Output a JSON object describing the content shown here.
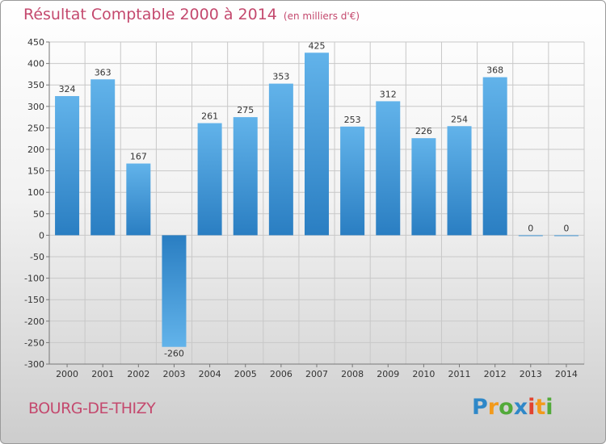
{
  "page": {
    "title": "Résultat Comptable 2000 à 2014",
    "subtitle": "(en milliers d'€)",
    "commune": "BOURG-DE-THIZY",
    "logo_text": "Proxiti"
  },
  "colors": {
    "title": "#c4496e",
    "bar_top": "#62b3ea",
    "bar_bottom": "#2a7ec2",
    "grid": "#c8c8c8"
  },
  "chart_data": {
    "type": "bar",
    "title": "Résultat Comptable 2000 à 2014",
    "subtitle": "(en milliers d'€)",
    "xlabel": "",
    "ylabel": "",
    "categories": [
      "2000",
      "2001",
      "2002",
      "2003",
      "2004",
      "2005",
      "2006",
      "2007",
      "2008",
      "2009",
      "2010",
      "2011",
      "2012",
      "2013",
      "2014"
    ],
    "values": [
      324,
      363,
      167,
      -260,
      261,
      275,
      353,
      425,
      253,
      312,
      226,
      254,
      368,
      0,
      0
    ],
    "ylim": [
      -300,
      450
    ],
    "yticks": [
      450,
      400,
      350,
      300,
      250,
      200,
      150,
      100,
      50,
      0,
      -50,
      -100,
      -150,
      -200,
      -250,
      -300
    ],
    "grid": true
  }
}
